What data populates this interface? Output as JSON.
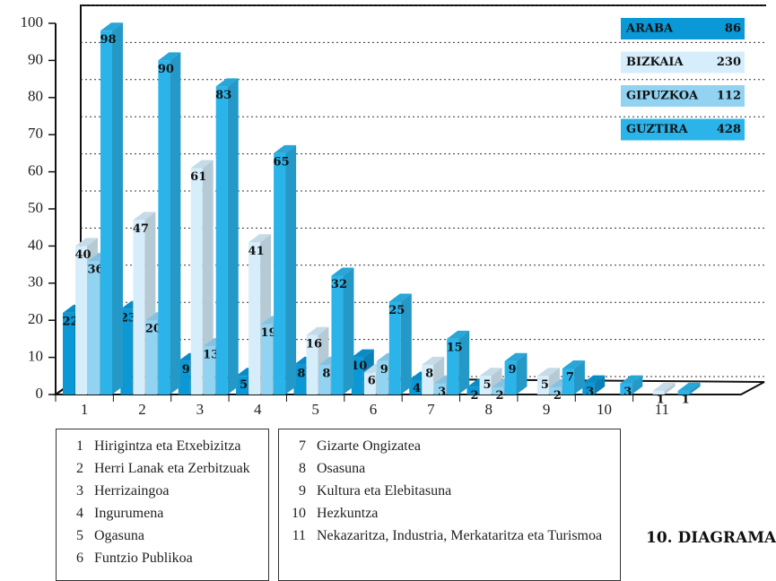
{
  "chart_data": {
    "type": "bar3d",
    "title": "10. DIAGRAMA",
    "categories": [
      1,
      2,
      3,
      4,
      5,
      6,
      7,
      8,
      9,
      10,
      11
    ],
    "category_names": [
      "Hirigintza eta Etxebizitza",
      "Herri Lanak eta Zerbitzuak",
      "Herrizaingoa",
      "Ingurumena",
      "Ogasuna",
      "Funtzio Publikoa",
      "Gizarte Ongizatea",
      "Osasuna",
      "Kultura eta Elebitasuna",
      "Hezkuntza",
      "Nekazaritza, Industria, Merkataritza eta Turismoa"
    ],
    "series": [
      {
        "name": "ARABA",
        "total": 86,
        "color": "#0a98d6",
        "values": [
          22,
          23,
          9,
          5,
          8,
          10,
          4,
          2,
          null,
          3,
          null
        ]
      },
      {
        "name": "BIZKAIA",
        "total": 230,
        "color": "#d6eefb",
        "values": [
          40,
          47,
          61,
          41,
          16,
          6,
          8,
          5,
          5,
          null,
          1
        ]
      },
      {
        "name": "GIPUZKOA",
        "total": 112,
        "color": "#92d3f2",
        "values": [
          36,
          20,
          13,
          19,
          8,
          9,
          3,
          2,
          2,
          null,
          null
        ]
      },
      {
        "name": "GUZTIRA",
        "total": 428,
        "color": "#2ab4ea",
        "values": [
          98,
          90,
          83,
          65,
          32,
          25,
          15,
          9,
          7,
          3,
          1
        ]
      }
    ],
    "ylim": [
      0,
      100
    ],
    "yticks": [
      0,
      10,
      20,
      30,
      40,
      50,
      60,
      70,
      80,
      90,
      100
    ],
    "grid": true
  }
}
